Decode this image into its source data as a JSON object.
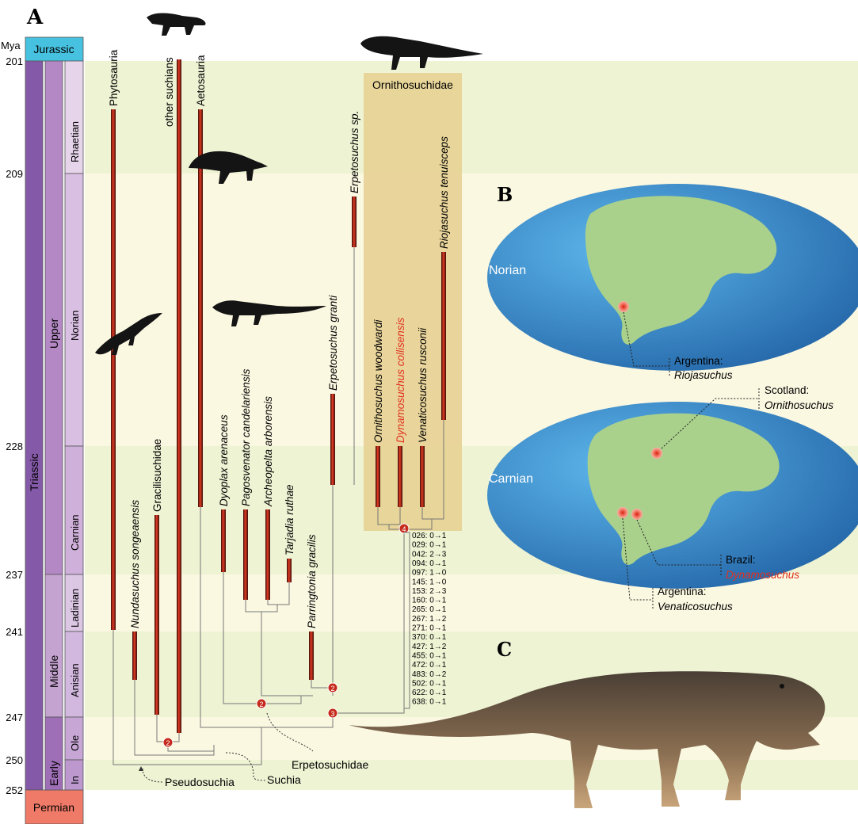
{
  "panels": {
    "a": "A",
    "b": "B",
    "c": "C"
  },
  "timescale": {
    "unit": "Mya",
    "ticks": [
      "201",
      "209",
      "228",
      "237",
      "241",
      "247",
      "250",
      "252"
    ],
    "periods": {
      "jurassic": "Jurassic",
      "triassic": "Triassic",
      "permian": "Permian"
    },
    "epochs": {
      "upper": "Upper",
      "middle": "Middle",
      "early": "Early"
    },
    "stages": {
      "rhaetian": "Rhaetian",
      "norian": "Norian",
      "carnian": "Carnian",
      "ladinian": "Ladinian",
      "anisian": "Anisian",
      "olenekian": "Ole",
      "induan": "In"
    }
  },
  "taxa": {
    "phytosauria": "Phytosauria",
    "other_suchians": "other suchians",
    "aetosauria": "Aetosauria",
    "nundasuchus": "Nundasuchus songeaensis",
    "gracilisuchidae": "Gracilisuchidae",
    "dyoplax": "Dyoplax arenaceus",
    "pagosvenator": "Pagosvenator candelariensis",
    "archeopelta": "Archeopelta arborensis",
    "tarjadia": "Tarjadia ruthae",
    "parringtonia": "Parringtonia gracilis",
    "erpetosuchus_granti": "Erpetosuchus granti",
    "erpetosuchus_sp": "Erpetosuchus sp.",
    "ornithosuchus": "Ornithosuchus woodwardi",
    "dynamosuchus": "Dynamosuchus collisensis",
    "venaticosuchus": "Venaticosuchus rusconii",
    "riojasuchus": "Riojasuchus tenuisceps"
  },
  "clades": {
    "ornithosuchidae": "Ornithosuchidae",
    "erpetosuchidae": "Erpetosuchidae",
    "suchia": "Suchia",
    "pseudosuchia": "Pseudosuchia"
  },
  "node_markers": {
    "n1": "2",
    "n2": "2",
    "n3": "2",
    "n4": "3",
    "n5": "4"
  },
  "characters": [
    "026: 0→1",
    "029: 0→1",
    "042: 2→3",
    "094: 0→1",
    "097: 1→0",
    "145: 1→0",
    "153: 2→3",
    "160: 0→1",
    "265: 0→1",
    "267: 1→2",
    "271: 0→1",
    "370: 0→1",
    "427: 1→2",
    "455: 0→1",
    "472: 0→1",
    "483: 0→2",
    "502: 0→1",
    "622: 0→1",
    "638: 0→1"
  ],
  "maps": {
    "norian": {
      "stage": "Norian",
      "loc1_country": "Argentina:",
      "loc1_taxon": "Riojasuchus"
    },
    "carnian": {
      "stage": "Carnian",
      "scotland_country": "Scotland:",
      "scotland_taxon": "Ornithosuchus",
      "brazil_country": "Brazil:",
      "brazil_taxon": "Dynamosuchus",
      "argentina_country": "Argentina:",
      "argentina_taxon": "Venaticosuchus"
    }
  },
  "colors": {
    "highlight_red": "#e0301e",
    "band_green": "#eef3d3",
    "band_cream": "#fbf8e1",
    "ornithosuchid_box": "#e5cf8e",
    "triassic_purple": "#8459a8",
    "jurassic_blue": "#46c2e0",
    "permian_red": "#ef7a68",
    "ocean_blue": "#3c8fd4",
    "land_green": "#a9d18c"
  }
}
